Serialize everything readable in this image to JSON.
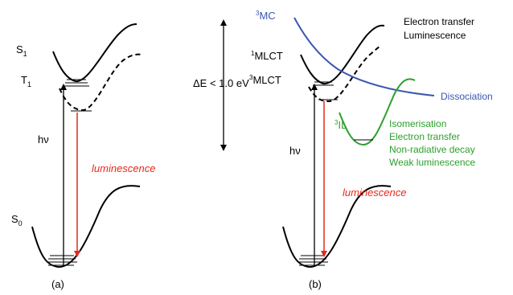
{
  "colors": {
    "black": "#000000",
    "red": "#e8271a",
    "blue": "#3a57b0",
    "green": "#2ca02c"
  },
  "panel_a": {
    "caption": "(a)",
    "state_s1": {
      "base": "S",
      "sub": "1"
    },
    "state_t1": {
      "base": "T",
      "sub": "1"
    },
    "state_s0": {
      "base": "S",
      "sub": "0"
    },
    "excitation": "hν",
    "emission": "luminescence"
  },
  "gap": {
    "label": "ΔE < 1.0  eV"
  },
  "panel_b": {
    "caption": "(b)",
    "mc": {
      "sup": "3",
      "base": "MC"
    },
    "mlct1": {
      "sup": "1",
      "base": "MLCT"
    },
    "mlct3": {
      "sup": "3",
      "base": "MLCT"
    },
    "il": {
      "sup": "3",
      "base": "IL"
    },
    "excitation": "hν",
    "emission": "luminescence",
    "mlct_processes": [
      "Electron transfer",
      "Luminescence"
    ],
    "mc_process": "Dissociation",
    "il_processes": [
      "Isomerisation",
      "Electron transfer",
      "Non-radiative decay",
      "Weak luminescence"
    ]
  }
}
